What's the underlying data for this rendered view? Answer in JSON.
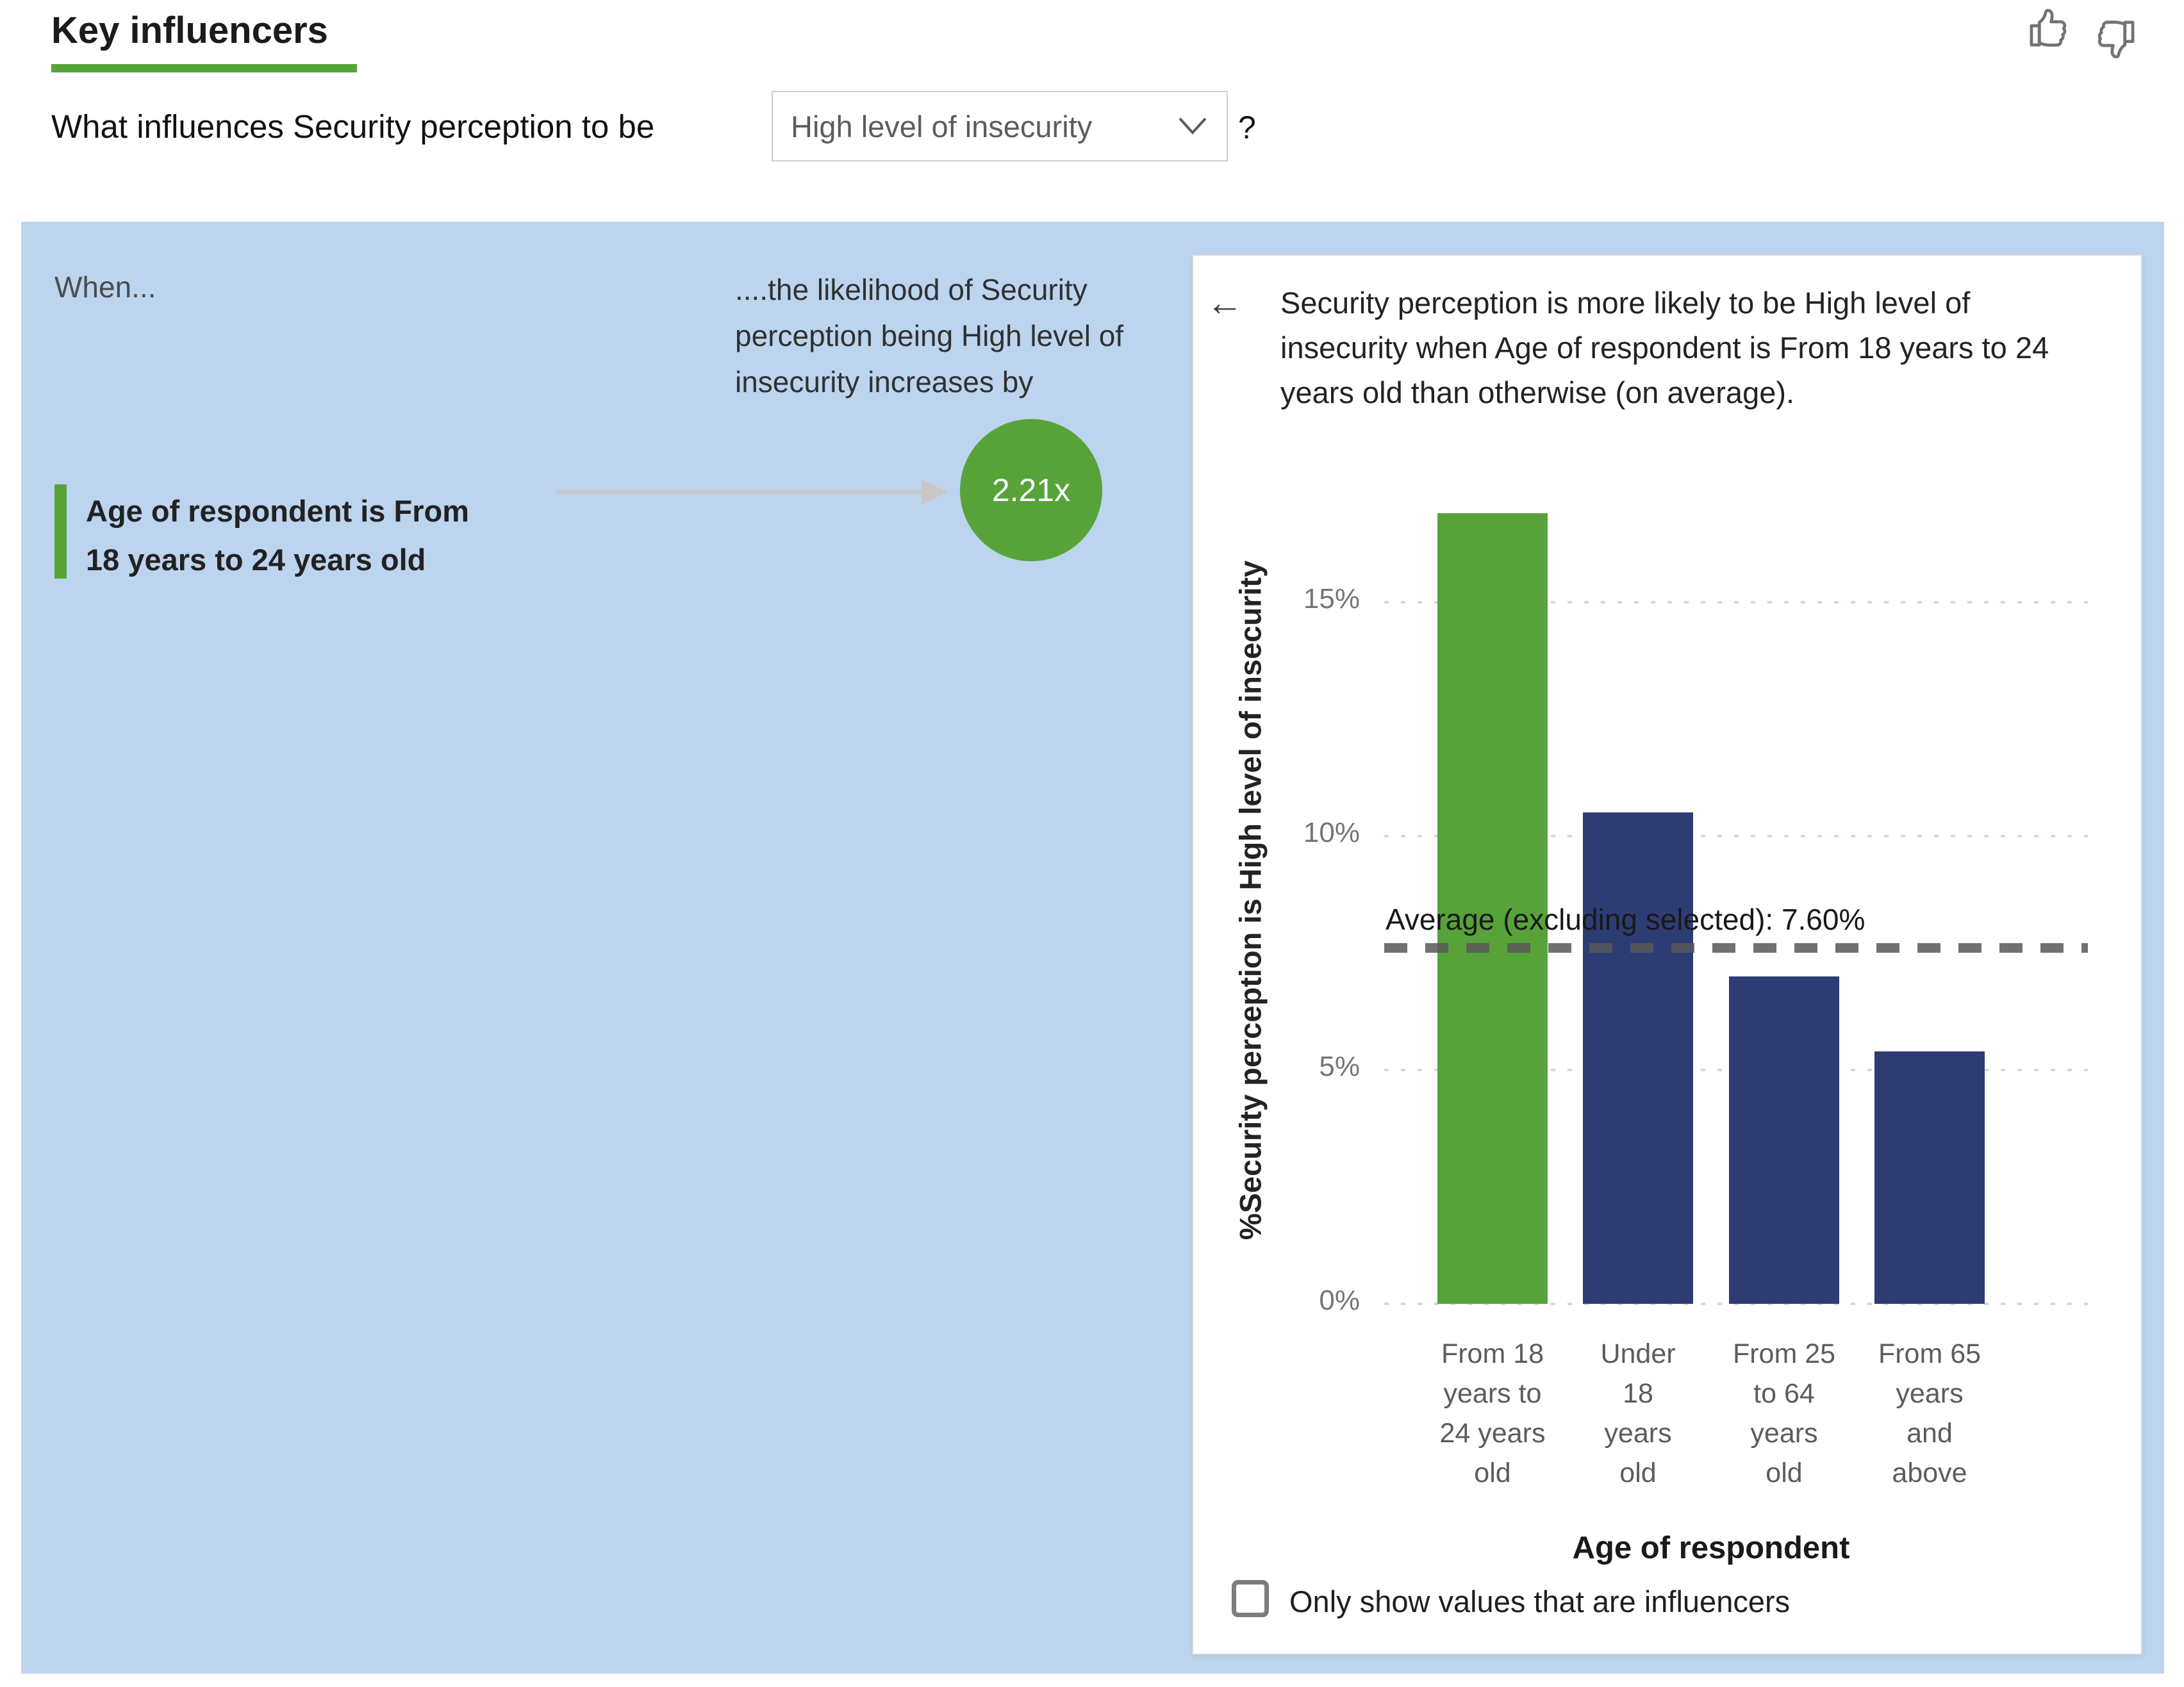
{
  "header": {
    "title": "Key influencers",
    "question_prefix": "What influences Security perception to be",
    "dropdown_value": "High level of insecurity",
    "question_suffix": "?"
  },
  "feedback": {
    "thumb_up_icon": "thumbs-up",
    "thumb_down_icon": "thumbs-down"
  },
  "influencers_panel": {
    "when_label": "When...",
    "likelihood_header": "....the likelihood of Security perception being High level of insecurity increases by",
    "influencers": [
      {
        "label": "Age of respondent is From 18 years to 24 years old",
        "multiplier": "2.21x"
      }
    ]
  },
  "detail_card": {
    "back_icon_glyph": "←",
    "explanation": "Security perception is more likely to be High level of insecurity when Age of respondent is From 18 years to 24 years old than otherwise (on average).",
    "checkbox_label": "Only show values that are influencers",
    "checkbox_checked": false
  },
  "chart_data": {
    "type": "bar",
    "categories": [
      "From 18 years to 24 years old",
      "Under 18 years old",
      "From 25 to 64 years old",
      "From 65 years and above"
    ],
    "values": [
      16.9,
      10.5,
      7.0,
      5.4
    ],
    "highlight_index": 0,
    "xlabel": "Age of respondent",
    "ylabel": "%Security perception is High level of insecurity",
    "yticks": [
      {
        "label": "0%",
        "value": 0
      },
      {
        "label": "5%",
        "value": 5
      },
      {
        "label": "10%",
        "value": 10
      },
      {
        "label": "15%",
        "value": 15
      }
    ],
    "ylim": [
      0,
      17.6
    ],
    "grid": "dotted",
    "legend": "none",
    "average_line": {
      "label": "Average (excluding selected): 7.60%",
      "value": 7.6
    },
    "colors": {
      "highlight": "#57a33a",
      "default": "#2e3c74"
    }
  }
}
